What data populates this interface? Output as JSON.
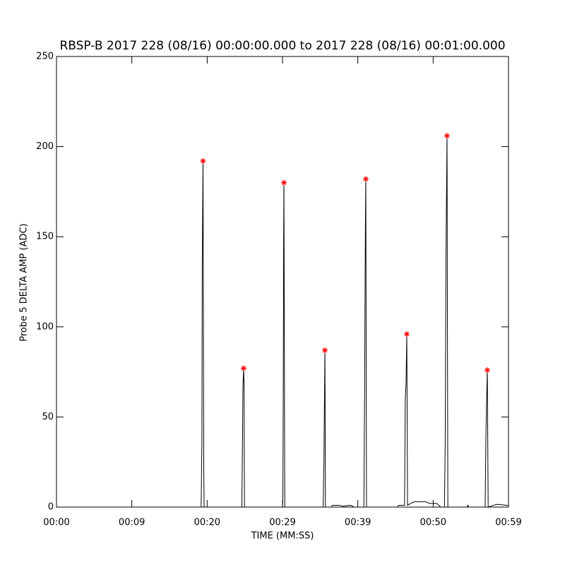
{
  "chart_data": {
    "type": "line",
    "title": "RBSP-B 2017 228 (08/16) 00:00:00.000 to 2017 228 (08/16) 00:01:00.000",
    "xlabel": "TIME (MM:SS)",
    "ylabel": "Probe 5 DELTA AMP (ADC)",
    "xlim": [
      0,
      60
    ],
    "ylim": [
      0,
      250
    ],
    "xticks": [
      {
        "value": 0,
        "label": "00:00"
      },
      {
        "value": 10,
        "label": "00:09"
      },
      {
        "value": 20,
        "label": "00:20"
      },
      {
        "value": 30,
        "label": "00:29"
      },
      {
        "value": 40,
        "label": "00:39"
      },
      {
        "value": 50,
        "label": "00:50"
      },
      {
        "value": 60,
        "label": "00:59"
      }
    ],
    "yticks": [
      0,
      50,
      100,
      150,
      200,
      250
    ],
    "series": [
      {
        "type": "line",
        "color": "#000000",
        "x": [
          0,
          19.2,
          19.3,
          19.35,
          19.45,
          19.55,
          19.6,
          24.6,
          24.7,
          24.75,
          24.84,
          24.9,
          24.95,
          30.0,
          30.05,
          30.1,
          30.15,
          30.19,
          30.3,
          35.4,
          35.5,
          35.55,
          35.63,
          35.7,
          36.5,
          36.6,
          37.5,
          38,
          39,
          39.5,
          40.8,
          40.9,
          41.0,
          41.06,
          41.15,
          45.3,
          45.4,
          46.2,
          46.3,
          46.4,
          46.5,
          46.6,
          47,
          47.5,
          49,
          49.5,
          50.5,
          51,
          51.5,
          51.6,
          51.7,
          51.84,
          51.95,
          54.5,
          54.6,
          54.7,
          56.9,
          57.0,
          57.1,
          57.19,
          57.3,
          58,
          58.5,
          59.8,
          60
        ],
        "values": [
          0,
          0,
          35,
          133,
          192,
          20,
          0,
          0,
          40,
          67,
          77,
          67,
          0,
          0,
          5,
          60,
          148,
          180,
          0,
          0,
          25,
          50,
          87,
          0,
          0,
          1,
          1,
          0.5,
          1,
          0,
          0,
          63,
          153,
          182,
          0,
          0,
          1,
          1,
          60,
          69,
          96,
          1,
          2,
          3,
          3,
          2,
          2,
          0,
          0,
          36,
          138,
          206,
          0,
          0,
          1,
          0,
          0,
          38,
          60,
          76,
          0,
          1,
          1.5,
          1,
          1
        ]
      },
      {
        "type": "scatter",
        "color": "#ff0000",
        "marker": "asterisk",
        "x": [
          19.45,
          24.84,
          30.19,
          35.63,
          41.06,
          46.5,
          51.84,
          57.19
        ],
        "values": [
          192,
          77,
          180,
          87,
          182,
          96,
          206,
          76
        ]
      }
    ]
  }
}
